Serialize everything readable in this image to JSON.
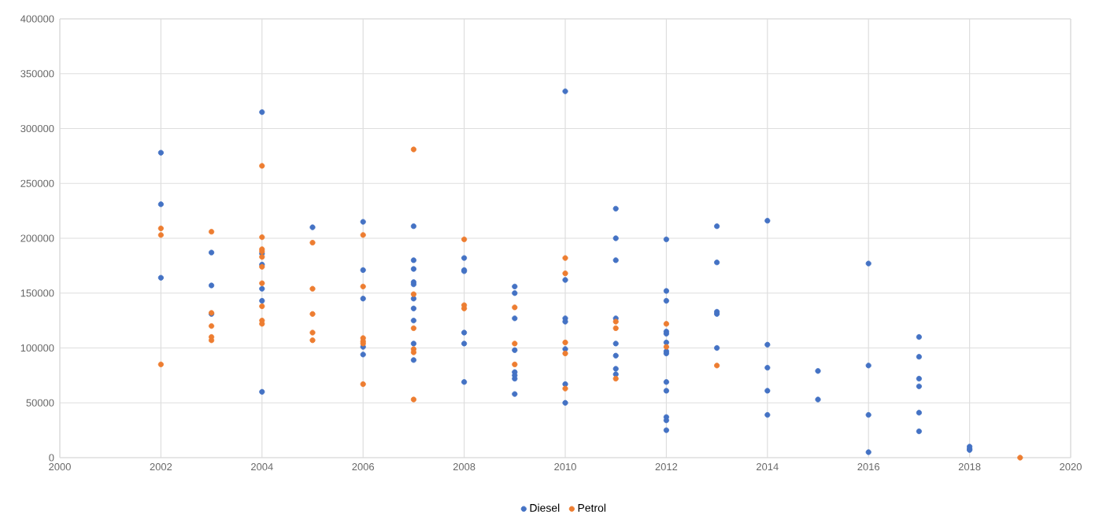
{
  "chart_data": {
    "type": "scatter",
    "xlim": [
      2000,
      2020
    ],
    "xticks": [
      2000,
      2002,
      2004,
      2006,
      2008,
      2010,
      2012,
      2014,
      2016,
      2018,
      2020
    ],
    "ylim": [
      0,
      400000
    ],
    "yticks": [
      0,
      50000,
      100000,
      150000,
      200000,
      250000,
      300000,
      350000,
      400000
    ],
    "grid": true,
    "legend": "bottom",
    "marker": "circle",
    "series": [
      {
        "name": "Diesel",
        "color": "#4472c4",
        "x": [
          2002,
          2002,
          2002,
          2003,
          2003,
          2003,
          2004,
          2004,
          2004,
          2004,
          2004,
          2004,
          2005,
          2006,
          2006,
          2006,
          2006,
          2006,
          2007,
          2007,
          2007,
          2007,
          2007,
          2007,
          2007,
          2007,
          2007,
          2007,
          2008,
          2008,
          2008,
          2008,
          2008,
          2008,
          2009,
          2009,
          2009,
          2009,
          2009,
          2009,
          2009,
          2009,
          2010,
          2010,
          2010,
          2010,
          2010,
          2010,
          2010,
          2011,
          2011,
          2011,
          2011,
          2011,
          2011,
          2011,
          2011,
          2012,
          2012,
          2012,
          2012,
          2012,
          2012,
          2012,
          2012,
          2012,
          2012,
          2012,
          2012,
          2012,
          2013,
          2013,
          2013,
          2013,
          2013,
          2014,
          2014,
          2014,
          2014,
          2014,
          2015,
          2015,
          2016,
          2016,
          2016,
          2016,
          2017,
          2017,
          2017,
          2017,
          2017,
          2017,
          2018,
          2018,
          2018
        ],
        "values": [
          278000,
          231000,
          164000,
          187000,
          157000,
          131000,
          315000,
          186000,
          176000,
          154000,
          143000,
          60000,
          210000,
          215000,
          171000,
          145000,
          101000,
          94000,
          211000,
          180000,
          172000,
          160000,
          158000,
          145000,
          136000,
          125000,
          104000,
          89000,
          182000,
          171000,
          170000,
          114000,
          104000,
          69000,
          156000,
          150000,
          127000,
          98000,
          78000,
          75000,
          72000,
          58000,
          334000,
          162000,
          127000,
          124000,
          99000,
          67000,
          50000,
          227000,
          200000,
          180000,
          127000,
          104000,
          93000,
          81000,
          76000,
          199000,
          152000,
          143000,
          115000,
          113000,
          105000,
          97000,
          95000,
          69000,
          61000,
          37000,
          34000,
          25000,
          211000,
          178000,
          133000,
          131000,
          100000,
          216000,
          103000,
          82000,
          61000,
          39000,
          79000,
          53000,
          177000,
          84000,
          39000,
          5000,
          110000,
          92000,
          72000,
          65000,
          41000,
          24000,
          10000,
          8000,
          7000
        ]
      },
      {
        "name": "Petrol",
        "color": "#ed7d31",
        "x": [
          2002,
          2002,
          2002,
          2003,
          2003,
          2003,
          2003,
          2003,
          2004,
          2004,
          2004,
          2004,
          2004,
          2004,
          2004,
          2004,
          2004,
          2004,
          2005,
          2005,
          2005,
          2005,
          2005,
          2006,
          2006,
          2006,
          2006,
          2006,
          2006,
          2007,
          2007,
          2007,
          2007,
          2007,
          2007,
          2008,
          2008,
          2008,
          2009,
          2009,
          2009,
          2010,
          2010,
          2010,
          2010,
          2010,
          2011,
          2011,
          2011,
          2012,
          2012,
          2013,
          2019
        ],
        "values": [
          209000,
          203000,
          85000,
          206000,
          132000,
          120000,
          110000,
          107000,
          266000,
          201000,
          190000,
          188000,
          183000,
          174000,
          159000,
          138000,
          125000,
          122000,
          196000,
          154000,
          131000,
          114000,
          107000,
          203000,
          156000,
          109000,
          106000,
          104000,
          67000,
          281000,
          149000,
          118000,
          99000,
          96000,
          53000,
          199000,
          139000,
          136000,
          137000,
          104000,
          85000,
          182000,
          168000,
          105000,
          95000,
          63000,
          124000,
          118000,
          72000,
          122000,
          101000,
          84000,
          0
        ]
      }
    ]
  }
}
